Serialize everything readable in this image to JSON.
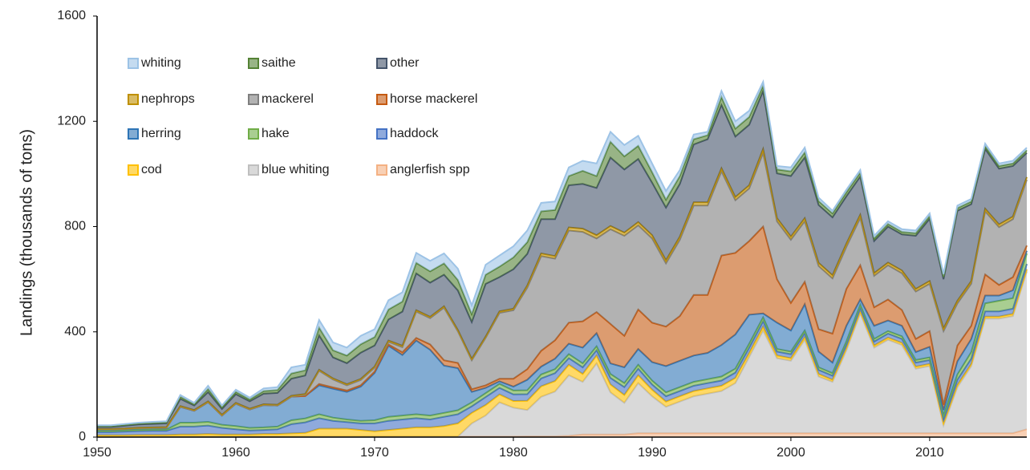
{
  "chart_data": {
    "type": "stacked_area",
    "y_label": "Landings (thousands of tons)",
    "x": [
      1950,
      1951,
      1952,
      1953,
      1954,
      1955,
      1956,
      1957,
      1958,
      1959,
      1960,
      1961,
      1962,
      1963,
      1964,
      1965,
      1966,
      1967,
      1968,
      1969,
      1970,
      1971,
      1972,
      1973,
      1974,
      1975,
      1976,
      1977,
      1978,
      1979,
      1980,
      1981,
      1982,
      1983,
      1984,
      1985,
      1986,
      1987,
      1988,
      1989,
      1990,
      1991,
      1992,
      1993,
      1994,
      1995,
      1996,
      1997,
      1998,
      1999,
      2000,
      2001,
      2002,
      2003,
      2004,
      2005,
      2006,
      2007,
      2008,
      2009,
      2010,
      2011,
      2012,
      2013,
      2014,
      2015,
      2016,
      2017
    ],
    "xlim": [
      1950,
      2017
    ],
    "xticks": [
      1950,
      1960,
      1970,
      1980,
      1990,
      2000,
      2010
    ],
    "ylim": [
      0,
      1600
    ],
    "yticks": [
      0,
      400,
      800,
      1200,
      1600
    ],
    "grid": false,
    "legend": "top-left",
    "series": [
      {
        "name": "anglerfish spp",
        "color": "#f4b183",
        "values": [
          2,
          2,
          2,
          2,
          2,
          2,
          2,
          2,
          2,
          2,
          2,
          2,
          2,
          2,
          2,
          2,
          2,
          2,
          2,
          2,
          2,
          2,
          2,
          2,
          2,
          2,
          2,
          2,
          2,
          2,
          2,
          3,
          3,
          3,
          5,
          10,
          10,
          10,
          10,
          15,
          15,
          15,
          15,
          15,
          15,
          15,
          15,
          15,
          15,
          15,
          15,
          15,
          15,
          15,
          15,
          15,
          15,
          15,
          15,
          15,
          15,
          15,
          15,
          15,
          15,
          15,
          15,
          30
        ]
      },
      {
        "name": "blue whiting",
        "color": "#bfbfbf",
        "values": [
          0,
          0,
          0,
          0,
          0,
          0,
          0,
          0,
          0,
          0,
          0,
          0,
          0,
          0,
          0,
          0,
          0,
          0,
          0,
          0,
          0,
          0,
          0,
          0,
          0,
          0,
          0,
          50,
          80,
          130,
          110,
          100,
          150,
          170,
          230,
          200,
          270,
          160,
          120,
          190,
          140,
          100,
          120,
          140,
          150,
          160,
          190,
          290,
          390,
          285,
          275,
          355,
          215,
          195,
          315,
          455,
          325,
          355,
          335,
          245,
          255,
          30,
          175,
          255,
          435,
          435,
          445,
          600
        ]
      },
      {
        "name": "cod",
        "color": "#ffc000",
        "values": [
          5,
          5,
          5,
          6,
          6,
          6,
          8,
          8,
          10,
          8,
          8,
          8,
          10,
          10,
          12,
          14,
          30,
          30,
          30,
          25,
          20,
          25,
          30,
          35,
          35,
          40,
          50,
          40,
          40,
          30,
          25,
          35,
          40,
          40,
          40,
          30,
          30,
          30,
          30,
          30,
          25,
          20,
          20,
          20,
          20,
          20,
          20,
          15,
          15,
          10,
          10,
          10,
          10,
          8,
          8,
          8,
          8,
          8,
          8,
          8,
          8,
          8,
          8,
          8,
          8,
          8,
          8,
          8
        ]
      },
      {
        "name": "haddock",
        "color": "#4472c4",
        "values": [
          12,
          12,
          14,
          15,
          16,
          16,
          30,
          30,
          32,
          25,
          20,
          15,
          15,
          18,
          35,
          40,
          40,
          30,
          25,
          25,
          30,
          35,
          35,
          35,
          30,
          35,
          35,
          25,
          30,
          25,
          25,
          25,
          30,
          30,
          25,
          25,
          20,
          25,
          30,
          25,
          20,
          20,
          20,
          20,
          20,
          20,
          20,
          20,
          20,
          15,
          15,
          15,
          15,
          15,
          15,
          15,
          15,
          15,
          15,
          15,
          15,
          15,
          20,
          20,
          20,
          20,
          20,
          20
        ]
      },
      {
        "name": "hake",
        "color": "#70ad47",
        "values": [
          5,
          5,
          5,
          5,
          5,
          5,
          15,
          15,
          14,
          12,
          12,
          10,
          10,
          10,
          15,
          15,
          15,
          12,
          10,
          10,
          12,
          15,
          15,
          15,
          15,
          15,
          15,
          15,
          15,
          15,
          15,
          15,
          15,
          15,
          15,
          15,
          15,
          15,
          15,
          15,
          15,
          15,
          15,
          15,
          15,
          15,
          15,
          15,
          15,
          10,
          10,
          10,
          10,
          10,
          10,
          10,
          10,
          10,
          10,
          10,
          10,
          15,
          20,
          25,
          30,
          40,
          40,
          40
        ]
      },
      {
        "name": "herring",
        "color": "#2e75b6",
        "values": [
          5,
          5,
          5,
          6,
          6,
          7,
          60,
          45,
          75,
          35,
          85,
          70,
          85,
          80,
          90,
          85,
          110,
          110,
          105,
          130,
          180,
          270,
          230,
          280,
          250,
          180,
          160,
          40,
          20,
          10,
          15,
          40,
          30,
          40,
          40,
          60,
          50,
          40,
          60,
          60,
          70,
          100,
          100,
          100,
          100,
          120,
          130,
          110,
          15,
          100,
          80,
          100,
          60,
          40,
          60,
          20,
          50,
          40,
          40,
          30,
          40,
          20,
          50,
          50,
          30,
          20,
          30,
          10
        ]
      },
      {
        "name": "horse mackerel",
        "color": "#c55a11",
        "values": [
          0,
          0,
          0,
          0,
          0,
          0,
          0,
          0,
          0,
          0,
          0,
          0,
          0,
          0,
          0,
          0,
          5,
          5,
          5,
          5,
          5,
          5,
          10,
          10,
          20,
          20,
          20,
          10,
          10,
          10,
          30,
          40,
          60,
          70,
          80,
          100,
          80,
          150,
          120,
          150,
          150,
          150,
          170,
          230,
          220,
          340,
          310,
          280,
          330,
          165,
          105,
          85,
          85,
          110,
          140,
          130,
          70,
          80,
          60,
          50,
          60,
          20,
          60,
          50,
          80,
          40,
          50,
          20
        ]
      },
      {
        "name": "mackerel",
        "color": "#7f7f7f",
        "values": [
          0,
          0,
          0,
          0,
          0,
          0,
          0,
          0,
          0,
          0,
          0,
          0,
          0,
          0,
          0,
          5,
          50,
          30,
          20,
          20,
          15,
          10,
          20,
          100,
          100,
          200,
          120,
          110,
          180,
          250,
          260,
          310,
          360,
          310,
          350,
          340,
          280,
          360,
          380,
          320,
          320,
          240,
          290,
          340,
          340,
          320,
          200,
          200,
          280,
          220,
          240,
          230,
          240,
          210,
          160,
          180,
          120,
          130,
          140,
          180,
          180,
          280,
          160,
          160,
          240,
          220,
          220,
          250
        ]
      },
      {
        "name": "nephrops",
        "color": "#bf9000",
        "values": [
          2,
          2,
          2,
          2,
          2,
          2,
          3,
          3,
          3,
          3,
          3,
          3,
          3,
          3,
          3,
          3,
          4,
          4,
          4,
          4,
          4,
          5,
          5,
          5,
          5,
          5,
          5,
          5,
          5,
          6,
          6,
          8,
          10,
          10,
          12,
          12,
          12,
          12,
          12,
          12,
          12,
          12,
          12,
          12,
          12,
          12,
          12,
          12,
          15,
          12,
          12,
          12,
          12,
          12,
          12,
          12,
          10,
          10,
          10,
          10,
          10,
          10,
          10,
          10,
          10,
          10,
          10,
          10
        ]
      },
      {
        "name": "other",
        "color": "#44546a",
        "values": [
          8,
          8,
          10,
          12,
          13,
          14,
          27,
          17,
          35,
          22,
          33,
          28,
          40,
          45,
          65,
          70,
          130,
          80,
          80,
          100,
          80,
          80,
          130,
          140,
          130,
          120,
          150,
          140,
          200,
          130,
          150,
          120,
          130,
          140,
          160,
          170,
          180,
          260,
          240,
          240,
          200,
          200,
          200,
          220,
          240,
          240,
          230,
          230,
          220,
          170,
          230,
          230,
          220,
          220,
          180,
          145,
          122,
          137,
          137,
          202,
          237,
          187,
          342,
          292,
          227,
          212,
          192,
          92
        ]
      },
      {
        "name": "saithe",
        "color": "#548235",
        "values": [
          3,
          3,
          4,
          4,
          4,
          4,
          8,
          5,
          12,
          7,
          9,
          7,
          10,
          11,
          20,
          20,
          30,
          27,
          29,
          32,
          32,
          38,
          38,
          40,
          43,
          43,
          40,
          30,
          35,
          40,
          45,
          45,
          30,
          35,
          35,
          50,
          45,
          60,
          50,
          50,
          40,
          30,
          30,
          20,
          15,
          30,
          30,
          30,
          20,
          15,
          18,
          20,
          15,
          15,
          15,
          15,
          10,
          10,
          10,
          10,
          10,
          10,
          10,
          10,
          10,
          10,
          10,
          10
        ]
      },
      {
        "name": "whiting",
        "color": "#9dc3e6",
        "values": [
          3,
          3,
          3,
          3,
          4,
          4,
          7,
          5,
          12,
          6,
          8,
          7,
          10,
          11,
          23,
          21,
          29,
          30,
          30,
          32,
          30,
          35,
          35,
          38,
          40,
          38,
          43,
          33,
          38,
          42,
          42,
          44,
          32,
          32,
          33,
          38,
          48,
          38,
          43,
          38,
          33,
          33,
          23,
          18,
          13,
          23,
          28,
          23,
          15,
          13,
          15,
          18,
          13,
          10,
          10,
          10,
          10,
          10,
          10,
          10,
          10,
          10,
          10,
          10,
          10,
          10,
          10,
          10
        ]
      }
    ]
  }
}
